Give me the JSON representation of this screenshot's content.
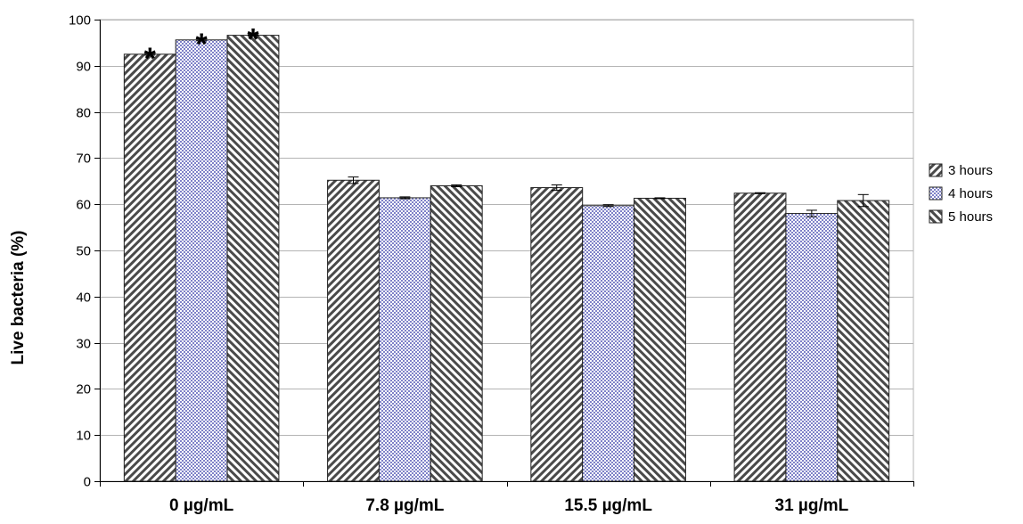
{
  "chart_data": {
    "type": "bar",
    "categories": [
      "0 µg/mL",
      "7.8 µg/mL",
      "15.5 µg/mL",
      "31 µg/mL"
    ],
    "series": [
      {
        "name": "3 hours",
        "values": [
          92.5,
          65.2,
          63.6,
          62.4
        ],
        "errors": [
          0.2,
          0.7,
          0.6,
          0.1
        ],
        "pattern": "diag-right"
      },
      {
        "name": "4 hours",
        "values": [
          95.6,
          61.4,
          59.7,
          58.0
        ],
        "errors": [
          0.2,
          0.2,
          0.2,
          0.7
        ],
        "pattern": "crosshatch-blue"
      },
      {
        "name": "5 hours",
        "values": [
          96.6,
          64.0,
          61.3,
          60.8
        ],
        "errors": [
          0.1,
          0.2,
          0.1,
          1.3
        ],
        "pattern": "diag-left"
      }
    ],
    "annotations": [
      {
        "category": "0 µg/mL",
        "series": "3 hours",
        "text": "*"
      },
      {
        "category": "0 µg/mL",
        "series": "4 hours",
        "text": "*"
      },
      {
        "category": "0 µg/mL",
        "series": "5 hours",
        "text": "*"
      }
    ],
    "title": "",
    "xlabel": "",
    "ylabel": "Live bacteria (%)",
    "ylim": [
      0,
      100
    ],
    "yticks": [
      0,
      10,
      20,
      30,
      40,
      50,
      60,
      70,
      80,
      90,
      100
    ],
    "grid": true,
    "legend": "right",
    "colors": {
      "bar_fill": "#ffffff",
      "hatch": "#4a4a4a",
      "hatch_blue": "#7f82c8",
      "grid": "#b4b4b4",
      "axis": "#000000"
    }
  }
}
